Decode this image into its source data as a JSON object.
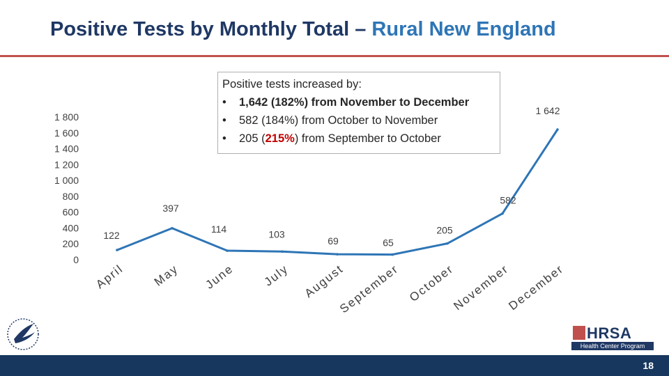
{
  "header": {
    "title_main": "Positive Tests by Monthly Total – ",
    "title_accent": "Rural New England"
  },
  "callout": {
    "lead": "Positive tests increased by:",
    "points": [
      {
        "bullet": "•",
        "number": "1,642 (182%) from November to December",
        "bold": true
      },
      {
        "bullet": "•",
        "number": "582 (184%) from October to November",
        "bold": false
      },
      {
        "bullet": "•",
        "pre": "205 (",
        "highlight": "215%",
        "post": ") from September to October",
        "bold": false
      }
    ]
  },
  "chart_data": {
    "type": "line",
    "categories": [
      "April",
      "May",
      "June",
      "July",
      "August",
      "September",
      "October",
      "November",
      "December"
    ],
    "series": [
      {
        "values": [
          122,
          397,
          114,
          103,
          69,
          65,
          205,
          582,
          1642
        ]
      }
    ],
    "data_labels": [
      "122",
      "397",
      "114",
      "103",
      "69",
      "65",
      "205",
      "582",
      "1 642"
    ],
    "y_ticks": [
      "0",
      "200",
      "400",
      "600",
      "800",
      "1 000",
      "1 200",
      "1 400",
      "1 600",
      "1 800"
    ],
    "ylim": [
      0,
      1800
    ],
    "grid": false,
    "line_color": "#2e75b6"
  },
  "footer": {
    "page_number": "18",
    "logo_text": "HRSA",
    "logo_subtitle": "Health Center Program"
  }
}
